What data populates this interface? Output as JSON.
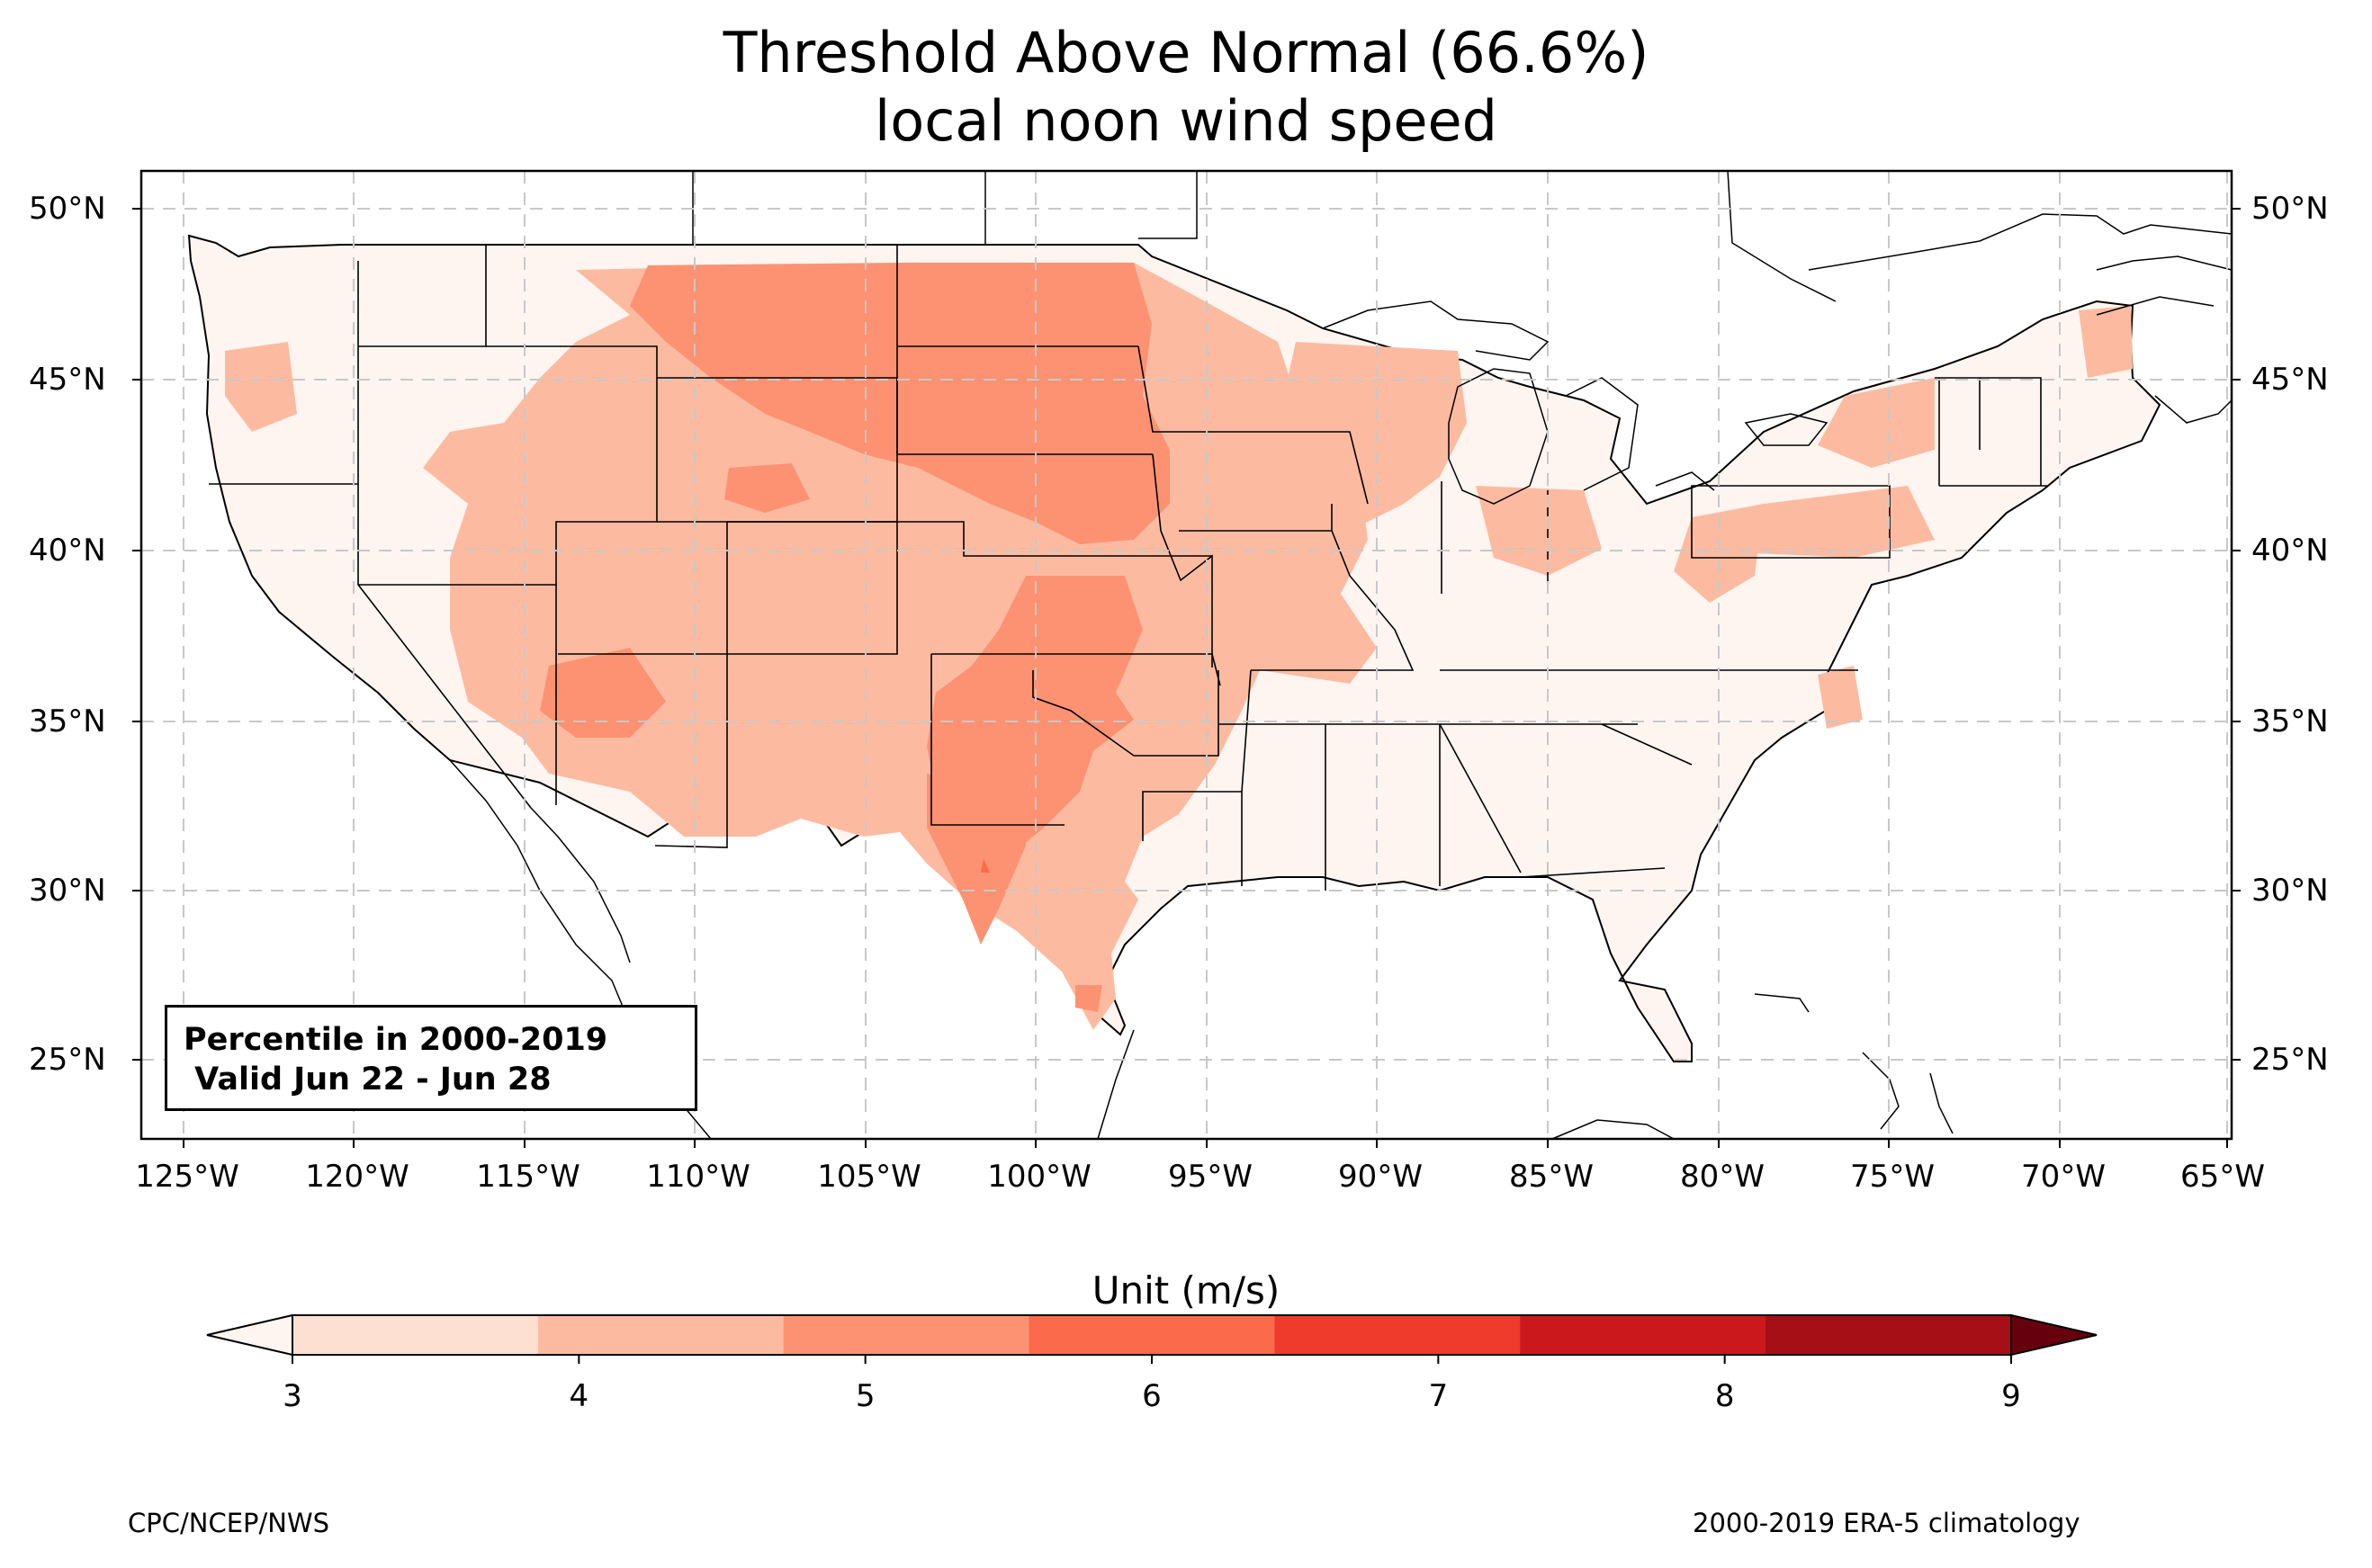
{
  "title_line1": "Threshold Above Normal (66.6%)",
  "title_line2": "local noon wind speed",
  "infobox": {
    "line1": "Percentile in 2000-2019",
    "line2": " Valid Jun 22 - Jun 28"
  },
  "lat_labels": [
    "50°N",
    "45°N",
    "40°N",
    "35°N",
    "30°N",
    "25°N"
  ],
  "lon_labels": [
    "125°W",
    "120°W",
    "115°W",
    "110°W",
    "105°W",
    "100°W",
    "95°W",
    "90°W",
    "85°W",
    "80°W",
    "75°W",
    "70°W",
    "65°W"
  ],
  "colorbar": {
    "label": "Unit (m/s)",
    "ticks": [
      "3",
      "4",
      "5",
      "6",
      "7",
      "8",
      "9"
    ],
    "colors": [
      "#fee0d2",
      "#fcbba1",
      "#fc9272",
      "#fb6a4a",
      "#ef3b2c",
      "#cb181d",
      "#a50f15"
    ],
    "under_color": "#fff5f0",
    "over_color": "#67000d"
  },
  "credit_left": "CPC/NCEP/NWS",
  "credit_right": "2000-2019 ERA-5 climatology"
}
